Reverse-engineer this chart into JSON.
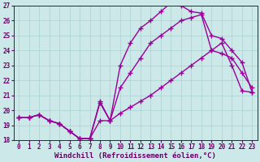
{
  "xlabel": "Windchill (Refroidissement éolien,°C)",
  "ylabel": "",
  "xlim": [
    -0.5,
    23.5
  ],
  "ylim": [
    18,
    27
  ],
  "xticks": [
    0,
    1,
    2,
    3,
    4,
    5,
    6,
    7,
    8,
    9,
    10,
    11,
    12,
    13,
    14,
    15,
    16,
    17,
    18,
    19,
    20,
    21,
    22,
    23
  ],
  "yticks": [
    18,
    19,
    20,
    21,
    22,
    23,
    24,
    25,
    26,
    27
  ],
  "bg_color": "#cce8e8",
  "line_color": "#990099",
  "line1_x": [
    0,
    1,
    2,
    3,
    4,
    5,
    6,
    7,
    8,
    9,
    10,
    11,
    12,
    13,
    14,
    15,
    16,
    17,
    18,
    19,
    20,
    21,
    22,
    23
  ],
  "line1_y": [
    19.5,
    19.5,
    19.7,
    19.3,
    19.1,
    18.6,
    18.1,
    18.1,
    20.6,
    19.3,
    23.0,
    24.5,
    25.5,
    26.0,
    26.6,
    27.2,
    27.0,
    26.6,
    26.5,
    25.0,
    24.8,
    24.0,
    23.2,
    21.2
  ],
  "line2_x": [
    0,
    1,
    2,
    3,
    4,
    5,
    6,
    7,
    8,
    9,
    10,
    11,
    12,
    13,
    14,
    15,
    16,
    17,
    18,
    19,
    20,
    21,
    22,
    23
  ],
  "line2_y": [
    19.5,
    19.5,
    19.7,
    19.3,
    19.1,
    18.6,
    18.1,
    18.1,
    20.5,
    19.3,
    21.5,
    22.5,
    23.5,
    24.5,
    25.0,
    25.5,
    26.0,
    26.2,
    26.4,
    24.0,
    23.8,
    23.5,
    22.5,
    21.5
  ],
  "line3_x": [
    0,
    1,
    2,
    3,
    4,
    5,
    6,
    7,
    8,
    9,
    10,
    11,
    12,
    13,
    14,
    15,
    16,
    17,
    18,
    19,
    20,
    21,
    22,
    23
  ],
  "line3_y": [
    19.5,
    19.5,
    19.7,
    19.3,
    19.1,
    18.6,
    18.1,
    18.1,
    19.3,
    19.3,
    19.8,
    20.2,
    20.6,
    21.0,
    21.5,
    22.0,
    22.5,
    23.0,
    23.5,
    24.0,
    24.5,
    23.0,
    21.3,
    21.2
  ],
  "marker": "+",
  "marker_size": 4,
  "line_width": 1.0,
  "tick_fontsize": 5.5,
  "label_fontsize": 6.5,
  "grid_color": "#aad0d0",
  "tick_color": "#660066",
  "spine_color": "#660066"
}
